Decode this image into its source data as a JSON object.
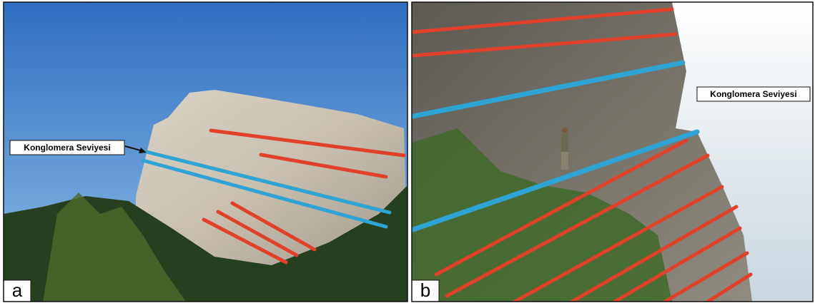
{
  "panels": [
    {
      "label": "a",
      "annotation": "Konglomera Seviyesi"
    },
    {
      "label": "b",
      "annotation": "Konglomera Seviyesi"
    }
  ]
}
